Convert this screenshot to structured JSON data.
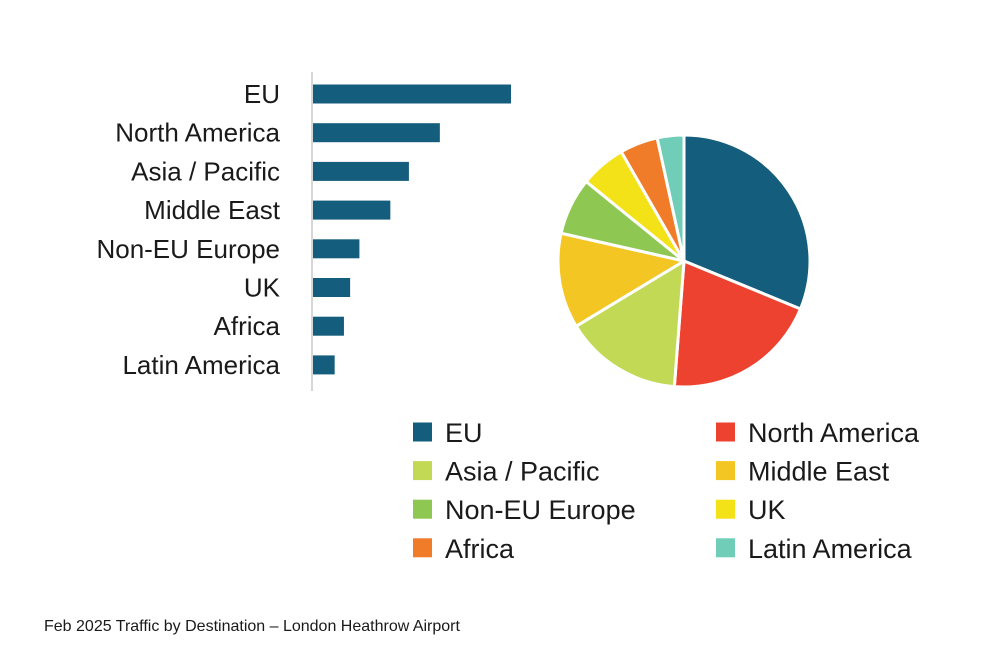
{
  "caption": "Feb 2025 Traffic by Destination – London Heathrow Airport",
  "chart_data": [
    {
      "type": "bar",
      "orientation": "horizontal",
      "categories": [
        "EU",
        "North America",
        "Asia / Pacific",
        "Middle East",
        "Non-EU Europe",
        "UK",
        "Africa",
        "Latin America"
      ],
      "values": [
        32,
        20.5,
        15.5,
        12.5,
        7.5,
        6,
        5,
        3.5
      ],
      "colors": [
        "#145d7c",
        "#145d7c",
        "#145d7c",
        "#145d7c",
        "#145d7c",
        "#145d7c",
        "#145d7c",
        "#145d7c"
      ],
      "xlim": [
        0,
        32
      ],
      "grid": false
    },
    {
      "type": "pie",
      "categories": [
        "EU",
        "North America",
        "Asia / Pacific",
        "Middle East",
        "Non-EU Europe",
        "UK",
        "Africa",
        "Latin America"
      ],
      "values": [
        32,
        20.5,
        15.5,
        12.5,
        7.5,
        6,
        5,
        3.5
      ],
      "colors": [
        "#145d7c",
        "#ee4230",
        "#c2d955",
        "#f4c623",
        "#8fc753",
        "#f3e217",
        "#f07b29",
        "#6fcdb8"
      ],
      "legend_position": "bottom"
    }
  ]
}
